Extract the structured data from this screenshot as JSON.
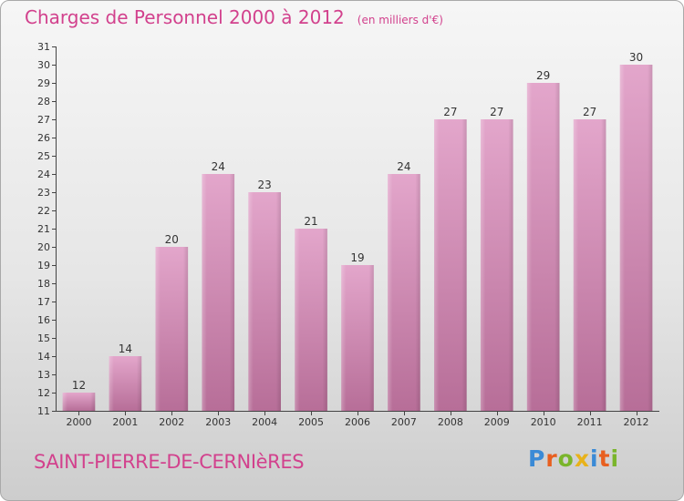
{
  "header": {
    "title": "Charges de Personnel 2000 à 2012",
    "subtitle": "(en milliers d'€)"
  },
  "footer": {
    "commune": "SAINT-PIERRE-DE-CERNIèRES",
    "brand": "Proxiti"
  },
  "colors": {
    "title": "#d2418d",
    "bar_top": "#e3a6cb",
    "bar_bottom": "#b76e98",
    "brand_letters": [
      "#3a8ad6",
      "#e85f1f",
      "#7ab52b",
      "#e8b21a",
      "#3a8ad6",
      "#e85f1f",
      "#7ab52b"
    ]
  },
  "chart_data": {
    "type": "bar",
    "title": "Charges de Personnel 2000 à 2012",
    "subtitle": "(en milliers d'€)",
    "categories": [
      "2000",
      "2001",
      "2002",
      "2003",
      "2004",
      "2005",
      "2006",
      "2007",
      "2008",
      "2009",
      "2010",
      "2011",
      "2012"
    ],
    "values": [
      12,
      14,
      20,
      24,
      23,
      21,
      19,
      24,
      27,
      27,
      29,
      27,
      30
    ],
    "ylim": [
      11,
      31
    ],
    "yticks": [
      11,
      12,
      13,
      14,
      15,
      16,
      17,
      18,
      19,
      20,
      21,
      22,
      23,
      24,
      25,
      26,
      27,
      28,
      29,
      30,
      31
    ],
    "grid": false,
    "data_labels": true
  }
}
